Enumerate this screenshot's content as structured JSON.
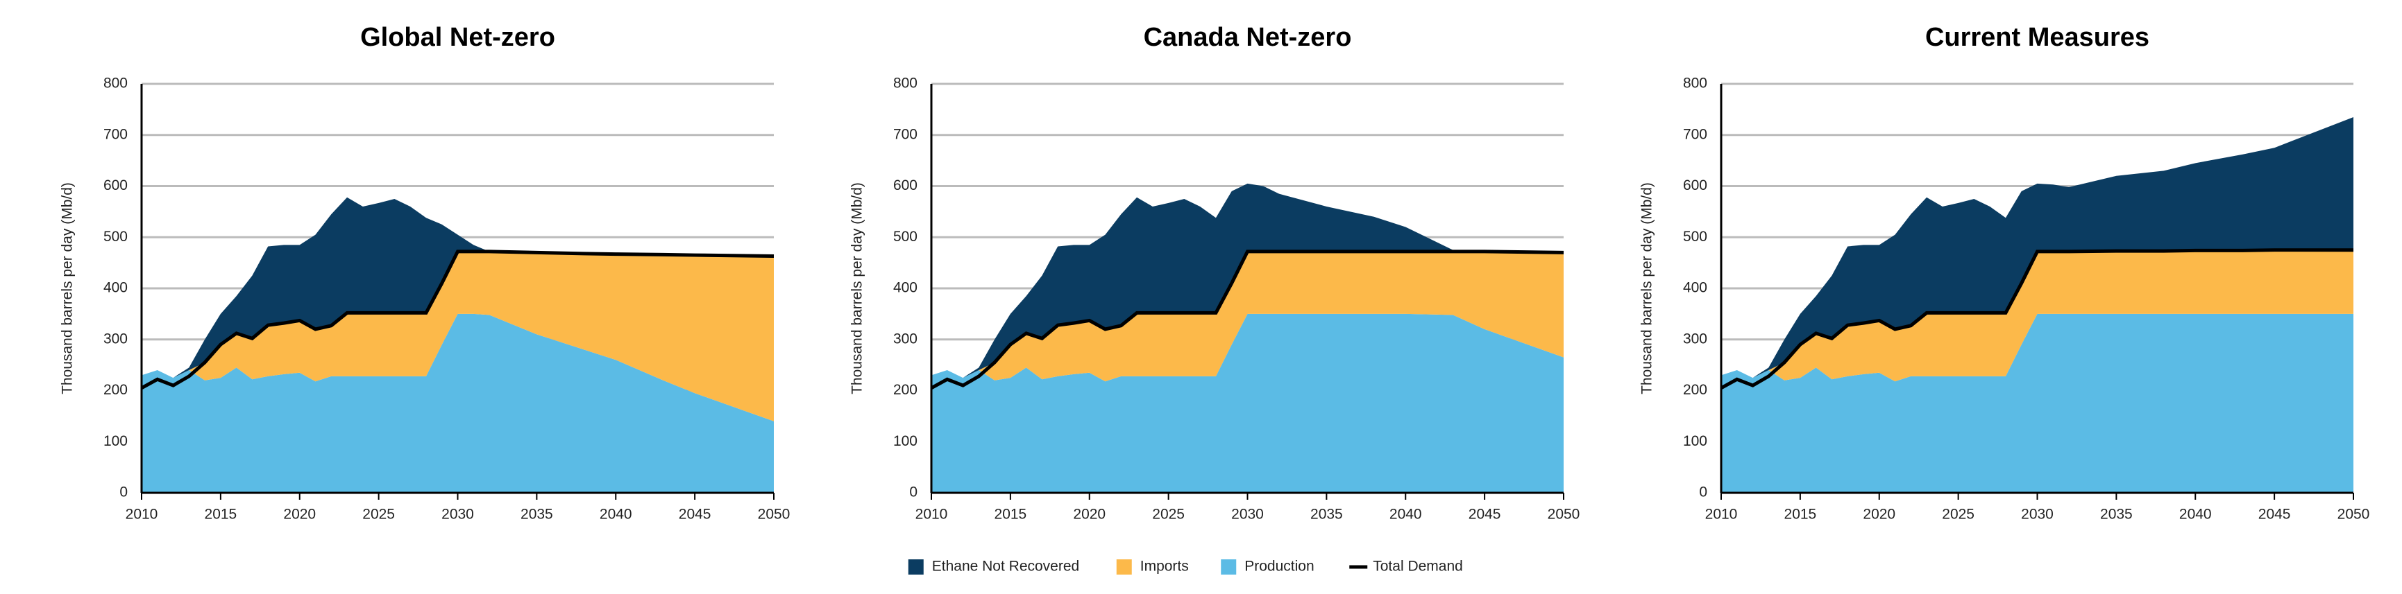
{
  "chart_data": [
    {
      "type": "area",
      "title": "Global Net-zero",
      "ylabel": "Thousand barrels per day (Mb/d)",
      "x": [
        2010,
        2011,
        2012,
        2013,
        2014,
        2015,
        2016,
        2017,
        2018,
        2019,
        2020,
        2021,
        2022,
        2023,
        2024,
        2025,
        2026,
        2027,
        2028,
        2029,
        2030,
        2031,
        2032,
        2035,
        2038,
        2040,
        2043,
        2045,
        2050
      ],
      "series": [
        {
          "name": "Ethane Not Recovered",
          "color": "#0b3c61",
          "values": [
            0,
            0,
            0,
            5,
            45,
            60,
            73,
            123,
            154,
            153,
            148,
            185,
            218,
            226,
            208,
            215,
            223,
            208,
            186,
            115,
            33,
            13,
            0,
            0,
            0,
            0,
            0,
            0,
            0
          ]
        },
        {
          "name": "Imports",
          "color": "#fcb94a",
          "values": [
            0,
            0,
            0,
            0,
            35,
            65,
            67,
            80,
            100,
            100,
            102,
            102,
            99,
            124,
            124,
            124,
            124,
            124,
            124,
            120,
            122,
            122,
            124,
            160,
            188,
            207,
            246,
            270,
            323
          ]
        },
        {
          "name": "Production",
          "color": "#5bbbe5",
          "values": [
            230,
            240,
            225,
            240,
            220,
            225,
            245,
            222,
            228,
            232,
            235,
            218,
            228,
            228,
            228,
            228,
            228,
            228,
            228,
            290,
            350,
            350,
            348,
            310,
            280,
            260,
            220,
            195,
            140
          ]
        },
        {
          "name": "Total Demand",
          "type": "line",
          "color": "#000000",
          "values": [
            205,
            222,
            210,
            228,
            255,
            290,
            312,
            302,
            328,
            332,
            337,
            320,
            327,
            352,
            352,
            352,
            352,
            352,
            352,
            410,
            472,
            472,
            472,
            470,
            468,
            467,
            466,
            465,
            463
          ]
        }
      ],
      "xlim": [
        2010,
        2050
      ],
      "xticks": [
        2010,
        2015,
        2020,
        2025,
        2030,
        2035,
        2040,
        2045,
        2050
      ],
      "ylim": [
        0,
        800
      ],
      "yticks": [
        0,
        100,
        200,
        300,
        400,
        500,
        600,
        700,
        800
      ],
      "grid": true
    },
    {
      "type": "area",
      "title": "Canada Net-zero",
      "ylabel": "Thousand barrels per day (Mb/d)",
      "x": [
        2010,
        2011,
        2012,
        2013,
        2014,
        2015,
        2016,
        2017,
        2018,
        2019,
        2020,
        2021,
        2022,
        2023,
        2024,
        2025,
        2026,
        2027,
        2028,
        2029,
        2030,
        2031,
        2032,
        2035,
        2038,
        2040,
        2043,
        2045,
        2050
      ],
      "series": [
        {
          "name": "Ethane Not Recovered",
          "color": "#0b3c61",
          "values": [
            0,
            0,
            0,
            5,
            45,
            60,
            73,
            123,
            154,
            153,
            148,
            185,
            218,
            226,
            208,
            215,
            223,
            208,
            186,
            180,
            133,
            128,
            113,
            88,
            68,
            48,
            3,
            0,
            0
          ]
        },
        {
          "name": "Imports",
          "color": "#fcb94a",
          "values": [
            0,
            0,
            0,
            0,
            35,
            65,
            67,
            80,
            100,
            100,
            102,
            102,
            99,
            124,
            124,
            124,
            124,
            124,
            124,
            120,
            122,
            122,
            122,
            122,
            122,
            122,
            124,
            152,
            205
          ]
        },
        {
          "name": "Production",
          "color": "#5bbbe5",
          "values": [
            230,
            240,
            225,
            240,
            220,
            225,
            245,
            222,
            228,
            232,
            235,
            218,
            228,
            228,
            228,
            228,
            228,
            228,
            228,
            290,
            350,
            350,
            350,
            350,
            350,
            350,
            348,
            320,
            265
          ]
        },
        {
          "name": "Total Demand",
          "type": "line",
          "color": "#000000",
          "values": [
            205,
            222,
            210,
            228,
            255,
            290,
            312,
            302,
            328,
            332,
            337,
            320,
            327,
            352,
            352,
            352,
            352,
            352,
            352,
            410,
            472,
            472,
            472,
            472,
            472,
            472,
            472,
            472,
            470
          ]
        }
      ],
      "xlim": [
        2010,
        2050
      ],
      "xticks": [
        2010,
        2015,
        2020,
        2025,
        2030,
        2035,
        2040,
        2045,
        2050
      ],
      "ylim": [
        0,
        800
      ],
      "yticks": [
        0,
        100,
        200,
        300,
        400,
        500,
        600,
        700,
        800
      ],
      "grid": true
    },
    {
      "type": "area",
      "title": "Current Measures",
      "ylabel": "Thousand barrels per day (Mb/d)",
      "x": [
        2010,
        2011,
        2012,
        2013,
        2014,
        2015,
        2016,
        2017,
        2018,
        2019,
        2020,
        2021,
        2022,
        2023,
        2024,
        2025,
        2026,
        2027,
        2028,
        2029,
        2030,
        2031,
        2032,
        2035,
        2038,
        2040,
        2043,
        2045,
        2050
      ],
      "series": [
        {
          "name": "Ethane Not Recovered",
          "color": "#0b3c61",
          "values": [
            0,
            0,
            0,
            5,
            45,
            60,
            73,
            123,
            154,
            153,
            148,
            185,
            218,
            226,
            208,
            215,
            223,
            208,
            186,
            180,
            133,
            131,
            126,
            147,
            157,
            171,
            188,
            200,
            260
          ]
        },
        {
          "name": "Imports",
          "color": "#fcb94a",
          "values": [
            0,
            0,
            0,
            0,
            35,
            65,
            67,
            80,
            100,
            100,
            102,
            102,
            99,
            124,
            124,
            124,
            124,
            124,
            124,
            120,
            122,
            122,
            122,
            123,
            123,
            124,
            124,
            125,
            125
          ]
        },
        {
          "name": "Production",
          "color": "#5bbbe5",
          "values": [
            230,
            240,
            225,
            240,
            220,
            225,
            245,
            222,
            228,
            232,
            235,
            218,
            228,
            228,
            228,
            228,
            228,
            228,
            228,
            290,
            350,
            350,
            350,
            350,
            350,
            350,
            350,
            350,
            350
          ]
        },
        {
          "name": "Total Demand",
          "type": "line",
          "color": "#000000",
          "values": [
            205,
            222,
            210,
            228,
            255,
            290,
            312,
            302,
            328,
            332,
            337,
            320,
            327,
            352,
            352,
            352,
            352,
            352,
            352,
            410,
            472,
            472,
            472,
            473,
            473,
            474,
            474,
            475,
            475
          ]
        }
      ],
      "xlim": [
        2010,
        2050
      ],
      "xticks": [
        2010,
        2015,
        2020,
        2025,
        2030,
        2035,
        2040,
        2045,
        2050
      ],
      "ylim": [
        0,
        800
      ],
      "yticks": [
        0,
        100,
        200,
        300,
        400,
        500,
        600,
        700,
        800
      ],
      "grid": true
    }
  ]
}
